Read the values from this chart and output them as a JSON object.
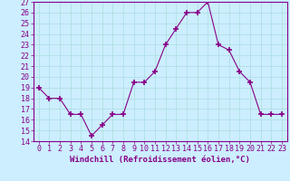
{
  "x": [
    0,
    1,
    2,
    3,
    4,
    5,
    6,
    7,
    8,
    9,
    10,
    11,
    12,
    13,
    14,
    15,
    16,
    17,
    18,
    19,
    20,
    21,
    22,
    23
  ],
  "y": [
    19,
    18,
    18,
    16.5,
    16.5,
    14.5,
    15.5,
    16.5,
    16.5,
    19.5,
    19.5,
    20.5,
    23,
    24.5,
    26,
    26,
    27,
    23,
    22.5,
    20.5,
    19.5,
    16.5,
    16.5,
    16.5
  ],
  "xlabel": "Windchill (Refroidissement éolien,°C)",
  "ylim": [
    14,
    27
  ],
  "yticks": [
    14,
    15,
    16,
    17,
    18,
    19,
    20,
    21,
    22,
    23,
    24,
    25,
    26,
    27
  ],
  "xticks": [
    0,
    1,
    2,
    3,
    4,
    5,
    6,
    7,
    8,
    9,
    10,
    11,
    12,
    13,
    14,
    15,
    16,
    17,
    18,
    19,
    20,
    21,
    22,
    23
  ],
  "line_color": "#880088",
  "marker": "+",
  "marker_size": 4,
  "bg_color": "#cceeff",
  "grid_color": "#aadddd",
  "axis_color": "#880088",
  "tick_color": "#880088",
  "label_fontsize": 6.5,
  "tick_fontsize": 6
}
